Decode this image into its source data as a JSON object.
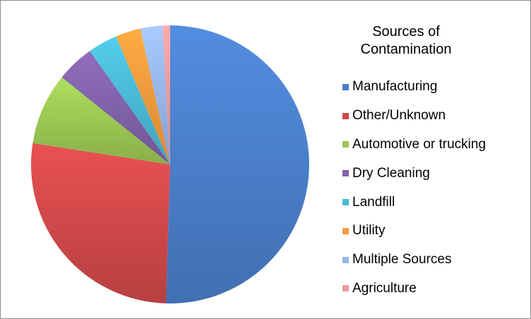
{
  "chart_data": {
    "type": "pie",
    "title": "Sources of Contamination",
    "title_lines": [
      "Sources of",
      "Contamination"
    ],
    "legend_position": "right",
    "categories": [
      "Manufacturing",
      "Other/Unknown",
      "Automotive or trucking",
      "Dry Cleaning",
      "Landfill",
      "Utility",
      "Multiple Sources",
      "Agriculture"
    ],
    "values": [
      51.5,
      27.5,
      8.5,
      4.5,
      3.5,
      3.0,
      2.6,
      0.9
    ],
    "colors": {
      "Manufacturing": "#4a7ec9",
      "Other/Unknown": "#d0484a",
      "Automotive or trucking": "#9bc753",
      "Dry Cleaning": "#8062a8",
      "Landfill": "#4ab8d4",
      "Utility": "#f79a3d",
      "Multiple Sources": "#97b5ea",
      "Agriculture": "#ef9a9a"
    },
    "start_angle_deg": 0,
    "direction": "clockwise"
  }
}
